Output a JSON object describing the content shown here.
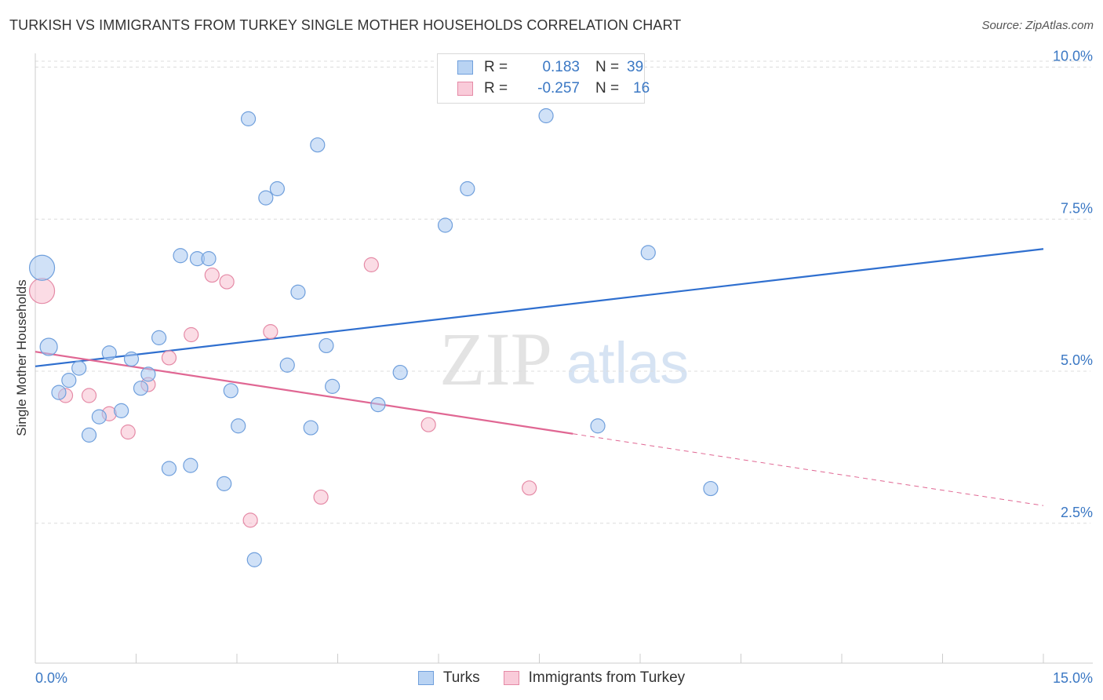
{
  "title": "TURKISH VS IMMIGRANTS FROM TURKEY SINGLE MOTHER HOUSEHOLDS CORRELATION CHART",
  "source": "Source: ZipAtlas.com",
  "watermark": {
    "zip": "ZIP",
    "atlas": "atlas"
  },
  "legend": {
    "rows": [
      {
        "r_label": "R =",
        "r_value": "0.183",
        "n_label": "N =",
        "n_value": "39"
      },
      {
        "r_label": "R =",
        "r_value": "-0.257",
        "n_label": "N =",
        "n_value": "16"
      }
    ]
  },
  "chart_data": {
    "type": "scatter",
    "title": "TURKISH VS IMMIGRANTS FROM TURKEY SINGLE MOTHER HOUSEHOLDS CORRELATION CHART",
    "xlabel": "",
    "ylabel": "Single Mother Households",
    "xlim": [
      0,
      15
    ],
    "ylim": [
      0.2,
      10.2
    ],
    "x_tick_labels": [
      "0.0%",
      "15.0%"
    ],
    "y_ticks": [
      {
        "value": 2.5,
        "label": "2.5%"
      },
      {
        "value": 5.0,
        "label": "5.0%"
      },
      {
        "value": 7.5,
        "label": "7.5%"
      },
      {
        "value": 10.0,
        "label": "10.0%"
      }
    ],
    "grid": true,
    "legend_position": "bottom",
    "series": [
      {
        "name": "Turks",
        "color": "#a9c8f0",
        "stroke": "#6f9fdc",
        "trend": {
          "x0": 0,
          "y0": 5.08,
          "x1": 15,
          "y1": 7.01,
          "color": "#2f6fcf",
          "dashed_from": null
        },
        "points": [
          [
            0.1,
            6.7,
            16
          ],
          [
            0.2,
            5.4,
            11
          ],
          [
            0.35,
            4.65,
            9
          ],
          [
            0.5,
            4.85,
            9
          ],
          [
            0.65,
            5.05,
            9
          ],
          [
            0.8,
            3.95,
            9
          ],
          [
            0.95,
            4.25,
            9
          ],
          [
            1.1,
            5.3,
            9
          ],
          [
            1.28,
            4.35,
            9
          ],
          [
            1.43,
            5.2,
            9
          ],
          [
            1.57,
            4.72,
            9
          ],
          [
            1.68,
            4.95,
            9
          ],
          [
            1.84,
            5.55,
            9
          ],
          [
            1.99,
            3.4,
            9
          ],
          [
            2.16,
            6.9,
            9
          ],
          [
            2.31,
            3.45,
            9
          ],
          [
            2.41,
            6.85,
            9
          ],
          [
            2.58,
            6.85,
            9
          ],
          [
            2.81,
            3.15,
            9
          ],
          [
            2.91,
            4.68,
            9
          ],
          [
            3.02,
            4.1,
            9
          ],
          [
            3.17,
            9.15,
            9
          ],
          [
            3.26,
            1.9,
            9
          ],
          [
            3.43,
            7.85,
            9
          ],
          [
            3.6,
            8.0,
            9
          ],
          [
            3.75,
            5.1,
            9
          ],
          [
            3.91,
            6.3,
            9
          ],
          [
            4.1,
            4.07,
            9
          ],
          [
            4.2,
            8.72,
            9
          ],
          [
            4.33,
            5.42,
            9
          ],
          [
            4.42,
            4.75,
            9
          ],
          [
            5.1,
            4.45,
            9
          ],
          [
            5.43,
            4.98,
            9
          ],
          [
            6.1,
            7.4,
            9
          ],
          [
            6.43,
            8.0,
            9
          ],
          [
            7.6,
            9.2,
            9
          ],
          [
            8.37,
            4.1,
            9
          ],
          [
            9.12,
            6.95,
            9
          ],
          [
            10.05,
            3.07,
            9
          ]
        ]
      },
      {
        "name": "Immigrants from Turkey",
        "color": "#f7c0d0",
        "stroke": "#e58aa6",
        "trend": {
          "x0": 0,
          "y0": 5.32,
          "x1": 15,
          "y1": 2.79,
          "color": "#e06793",
          "dashed_from": 8.0
        },
        "points": [
          [
            0.1,
            6.32,
            16
          ],
          [
            0.45,
            4.6,
            9
          ],
          [
            0.8,
            4.6,
            9
          ],
          [
            1.1,
            4.3,
            9
          ],
          [
            1.38,
            4.0,
            9
          ],
          [
            1.68,
            4.78,
            9
          ],
          [
            1.99,
            5.22,
            9
          ],
          [
            2.32,
            5.6,
            9
          ],
          [
            2.63,
            6.58,
            9
          ],
          [
            2.85,
            6.47,
            9
          ],
          [
            3.2,
            2.55,
            9
          ],
          [
            3.5,
            5.65,
            9
          ],
          [
            4.25,
            2.93,
            9
          ],
          [
            5.0,
            6.75,
            9
          ],
          [
            5.85,
            4.12,
            9
          ],
          [
            7.35,
            3.08,
            9
          ]
        ]
      }
    ]
  },
  "bottom_legend": [
    {
      "label": "Turks"
    },
    {
      "label": "Immigrants from Turkey"
    }
  ],
  "colors": {
    "blue_text": "#3b78c4",
    "grid": "#dcdcdc",
    "axis": "#cccccc"
  }
}
